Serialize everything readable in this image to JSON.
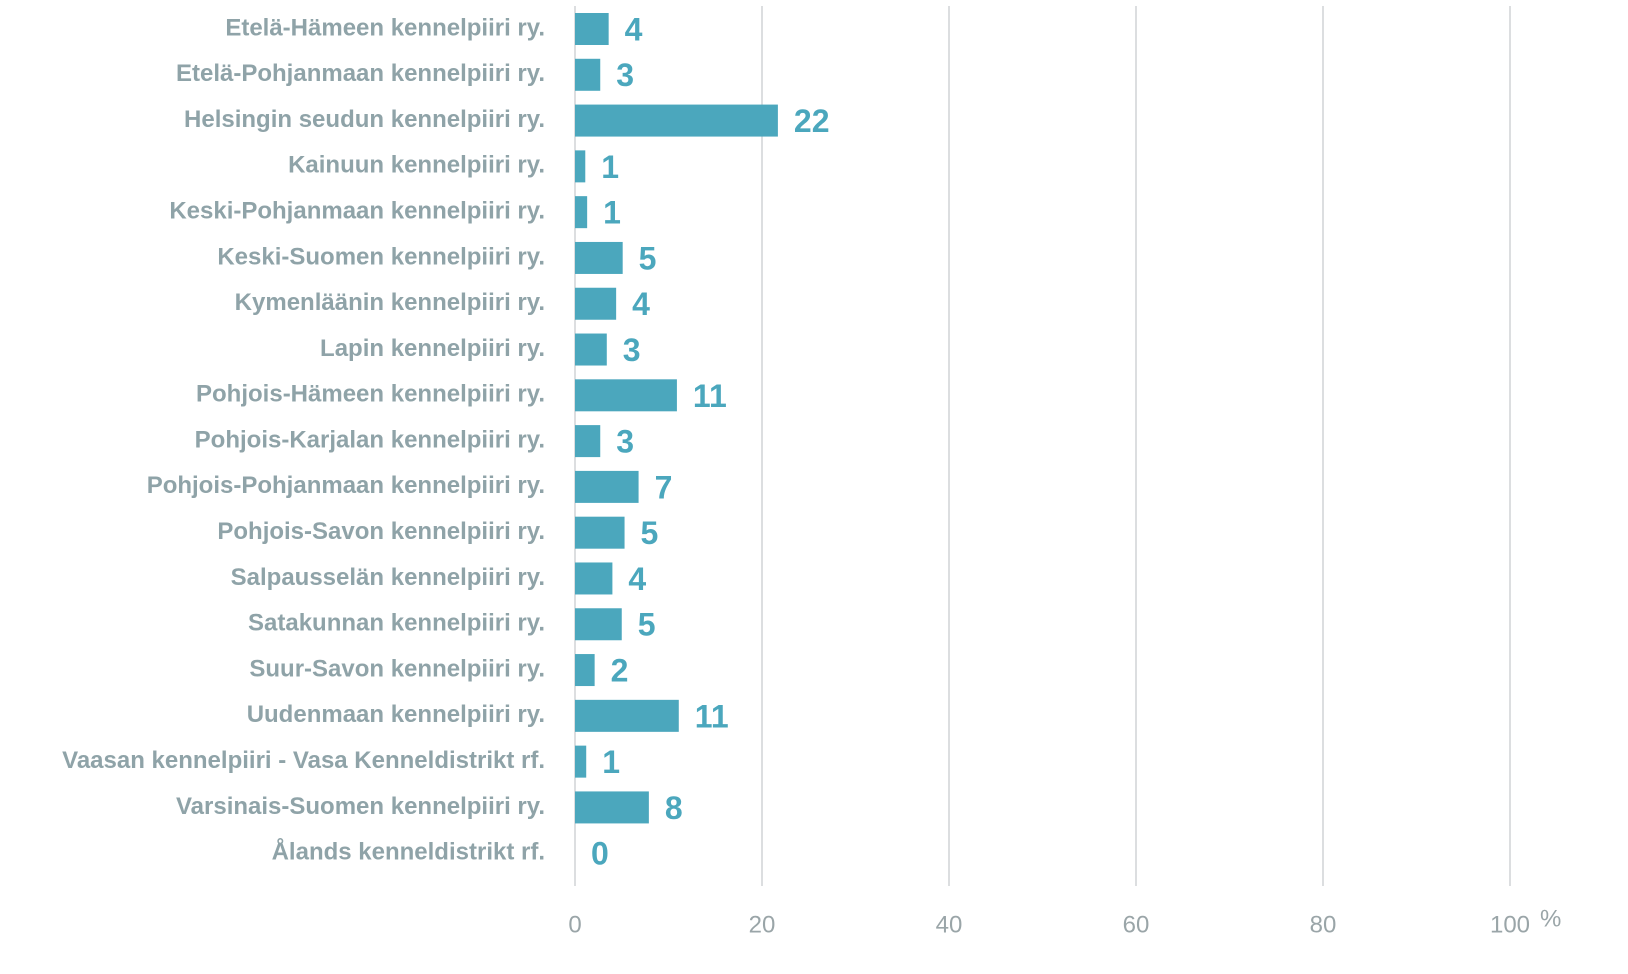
{
  "chart_data": {
    "type": "barh",
    "categories": [
      "Etelä-Hämeen kennelpiiri ry.",
      "Etelä-Pohjanmaan kennelpiiri ry.",
      "Helsingin seudun kennelpiiri ry.",
      "Kainuun kennelpiiri ry.",
      "Keski-Pohjanmaan kennelpiiri ry.",
      "Keski-Suomen kennelpiiri ry.",
      "Kymenläänin kennelpiiri ry.",
      "Lapin kennelpiiri ry.",
      "Pohjois-Hämeen kennelpiiri ry.",
      "Pohjois-Karjalan kennelpiiri ry.",
      "Pohjois-Pohjanmaan kennelpiiri ry.",
      "Pohjois-Savon kennelpiiri ry.",
      "Salpausselän kennelpiiri ry.",
      "Satakunnan kennelpiiri ry.",
      "Suur-Savon kennelpiiri ry.",
      "Uudenmaan kennelpiiri ry.",
      "Vaasan kennelpiiri - Vasa Kenneldistrikt rf.",
      "Varsinais-Suomen kennelpiiri ry.",
      "Ålands kenneldistrikt rf."
    ],
    "values": [
      3.6,
      2.7,
      21.7,
      1.1,
      1.3,
      5.1,
      4.4,
      3.4,
      10.9,
      2.7,
      6.8,
      5.3,
      4.0,
      5.0,
      2.1,
      11.1,
      1.2,
      7.9,
      0
    ],
    "value_labels": [
      "4",
      "3",
      "22",
      "1",
      "1",
      "5",
      "4",
      "3",
      "11",
      "3",
      "7",
      "5",
      "4",
      "5",
      "2",
      "11",
      "1",
      "8",
      "0"
    ],
    "color": "#4ba7bd",
    "xlim": [
      0,
      100
    ],
    "xticks": [
      0,
      20,
      40,
      60,
      80,
      100
    ],
    "xlabel": "%",
    "grid": true
  }
}
